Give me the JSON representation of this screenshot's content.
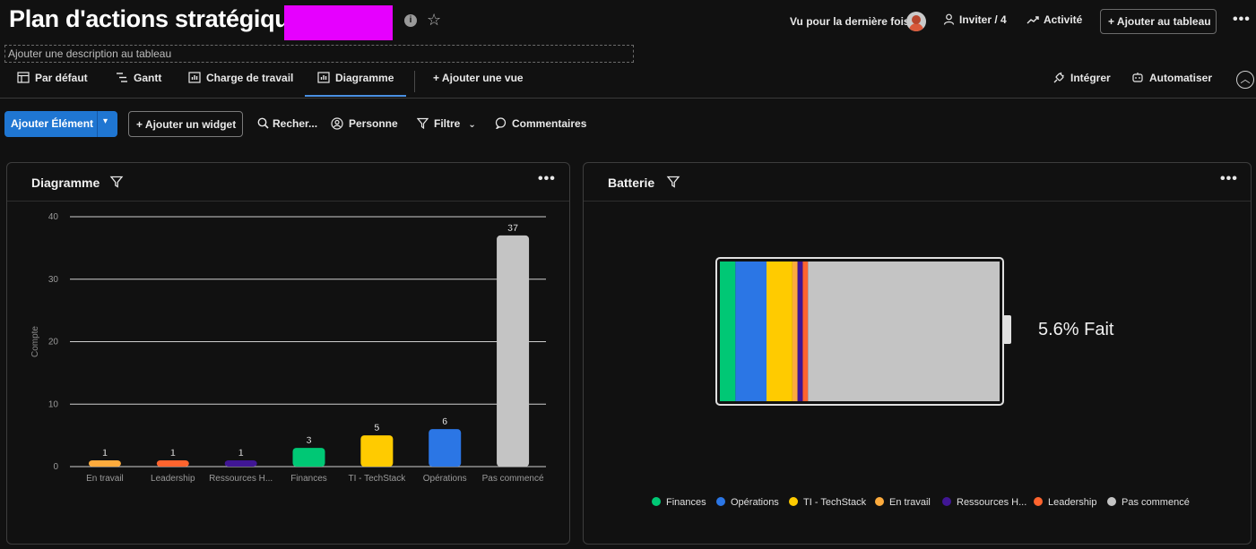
{
  "board": {
    "title": "Plan d'actions stratégique",
    "description_placeholder": "Ajouter une description au tableau"
  },
  "header": {
    "last_seen": "Vu pour la dernière fois",
    "invite": "Inviter / 4",
    "activity": "Activité",
    "add_to_board": "+ Ajouter au tableau"
  },
  "tabs": {
    "items": [
      {
        "label": "Par défaut",
        "icon": "table-home-icon"
      },
      {
        "label": "Gantt",
        "icon": "gantt-icon"
      },
      {
        "label": "Charge de travail",
        "icon": "workload-chart-icon"
      },
      {
        "label": "Diagramme",
        "icon": "chart-icon",
        "active": true
      }
    ],
    "add_view": "+ Ajouter une vue",
    "integrate": "Intégrer",
    "automate": "Automatiser"
  },
  "toolbar": {
    "add_item": "Ajouter Élément",
    "add_widget": "+ Ajouter un widget",
    "search": "Recher...",
    "person": "Personne",
    "filter": "Filtre",
    "comments": "Commentaires"
  },
  "widgets": {
    "chart_title": "Diagramme",
    "battery_title": "Batterie",
    "battery_label": "5.6% Fait"
  },
  "chart_data": {
    "type": "bar",
    "ylabel": "Compte",
    "ylim": [
      0,
      40
    ],
    "yticks": [
      0,
      10,
      20,
      30,
      40
    ],
    "grid": true,
    "categories": [
      "En travail",
      "Leadership",
      "Ressources H...",
      "Finances",
      "TI - TechStack",
      "Opérations",
      "Pas commencé"
    ],
    "values": [
      1,
      1,
      1,
      3,
      5,
      6,
      37
    ],
    "colors": [
      "#fdab3d",
      "#ff642e",
      "#401694",
      "#00c875",
      "#ffcb00",
      "#2b76e5",
      "#c4c4c4"
    ]
  },
  "battery": {
    "done_percent": 5.6,
    "segments": [
      {
        "name": "Finances",
        "count": 3,
        "color": "#00c875"
      },
      {
        "name": "Opérations",
        "count": 6,
        "color": "#2b76e5"
      },
      {
        "name": "TI - TechStack",
        "count": 5,
        "color": "#ffcb00"
      },
      {
        "name": "En travail",
        "count": 1,
        "color": "#fdab3d"
      },
      {
        "name": "Ressources H...",
        "count": 1,
        "color": "#401694"
      },
      {
        "name": "Leadership",
        "count": 1,
        "color": "#ff642e"
      },
      {
        "name": "Pas commencé",
        "count": 37,
        "color": "#c4c4c4"
      }
    ]
  }
}
